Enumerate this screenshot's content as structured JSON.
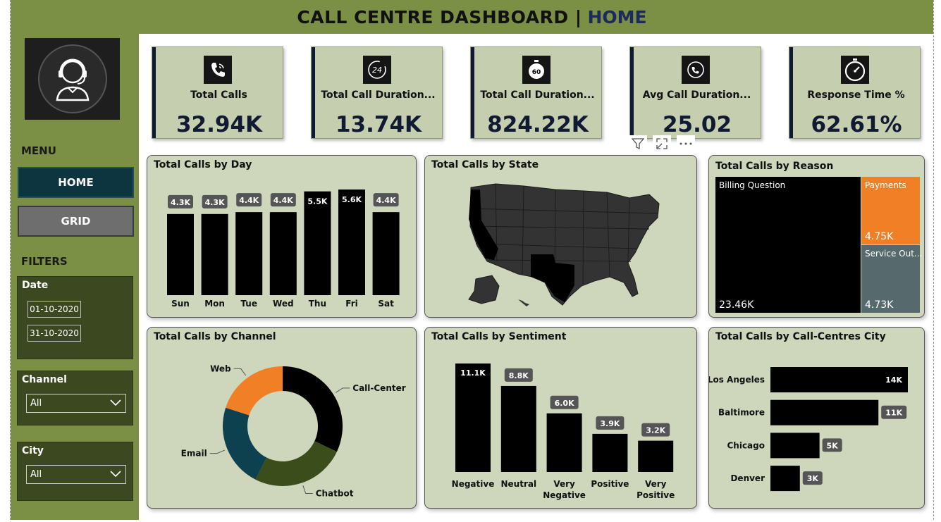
{
  "header": {
    "title_main": "CALL CENTRE DASHBOARD |",
    "title_page": "HOME"
  },
  "sidebar": {
    "menu_heading": "MENU",
    "nav": [
      {
        "label": "HOME"
      },
      {
        "label": "GRID"
      }
    ],
    "filters_heading": "FILTERS",
    "date": {
      "label": "Date",
      "start": "01-10-2020",
      "end": "31-10-2020"
    },
    "channel": {
      "label": "Channel",
      "value": "All"
    },
    "city": {
      "label": "City",
      "value": "All"
    }
  },
  "kpis": [
    {
      "title": "Total Calls",
      "value": "32.94K",
      "icon": "phone-icon"
    },
    {
      "title": "Total Call Duration...",
      "value": "13.74K",
      "icon": "24-hours-icon"
    },
    {
      "title": "Total Call Duration...",
      "value": "824.22K",
      "icon": "stopwatch-60-icon"
    },
    {
      "title": "Avg Call Duration...",
      "value": "25.02",
      "icon": "call-timer-icon"
    },
    {
      "title": "Response Time %",
      "value": "62.61%",
      "icon": "stopwatch-icon"
    }
  ],
  "panels": {
    "day": {
      "title": "Total Calls by Day"
    },
    "state": {
      "title": "Total Calls by State"
    },
    "reason": {
      "title": "Total Calls by Reason"
    },
    "channel": {
      "title": "Total Calls by Channel"
    },
    "sentiment": {
      "title": "Total Calls by Sentiment"
    },
    "city": {
      "title": "Total Calls by Call-Centres City"
    }
  },
  "chart_data": [
    {
      "type": "bar",
      "title": "Total Calls by Day",
      "categories": [
        "Sun",
        "Mon",
        "Tue",
        "Wed",
        "Thu",
        "Fri",
        "Sat"
      ],
      "values": [
        4.3,
        4.3,
        4.4,
        4.4,
        5.5,
        5.6,
        4.4
      ],
      "labels": [
        "4.3K",
        "4.3K",
        "4.4K",
        "4.4K",
        "5.5K",
        "5.6K",
        "4.4K"
      ]
    },
    {
      "type": "pie",
      "title": "Total Calls by Channel",
      "categories": [
        "Call-Center",
        "Chatbot",
        "Email",
        "Web"
      ],
      "values": [
        32.0,
        25.5,
        22.5,
        20.0
      ],
      "colors": [
        "#000000",
        "#3a4d1a",
        "#0d4150",
        "#f07f26"
      ]
    },
    {
      "type": "bar",
      "title": "Total Calls by Sentiment",
      "categories": [
        "Negative",
        "Neutral",
        "Very Negative",
        "Positive",
        "Very Positive"
      ],
      "values": [
        11.1,
        8.8,
        6.0,
        3.9,
        3.2
      ],
      "labels": [
        "11.1K",
        "8.8K",
        "6.0K",
        "3.9K",
        "3.2K"
      ]
    },
    {
      "type": "bar",
      "title": "Total Calls by Call-Centres City",
      "orientation": "horizontal",
      "categories": [
        "Los Angeles",
        "Baltimore",
        "Chicago",
        "Denver"
      ],
      "values": [
        14,
        11,
        5,
        3
      ],
      "labels": [
        "14K",
        "11K",
        "5K",
        "3K"
      ]
    },
    {
      "type": "treemap",
      "title": "Total Calls by Reason",
      "categories": [
        "Billing Question",
        "Payments",
        "Service Out..."
      ],
      "values": [
        23.46,
        4.75,
        4.73
      ],
      "labels": [
        "23.46K",
        "4.75K",
        "4.73K"
      ],
      "colors": [
        "#000000",
        "#f07f26",
        "#566a6e"
      ]
    }
  ]
}
